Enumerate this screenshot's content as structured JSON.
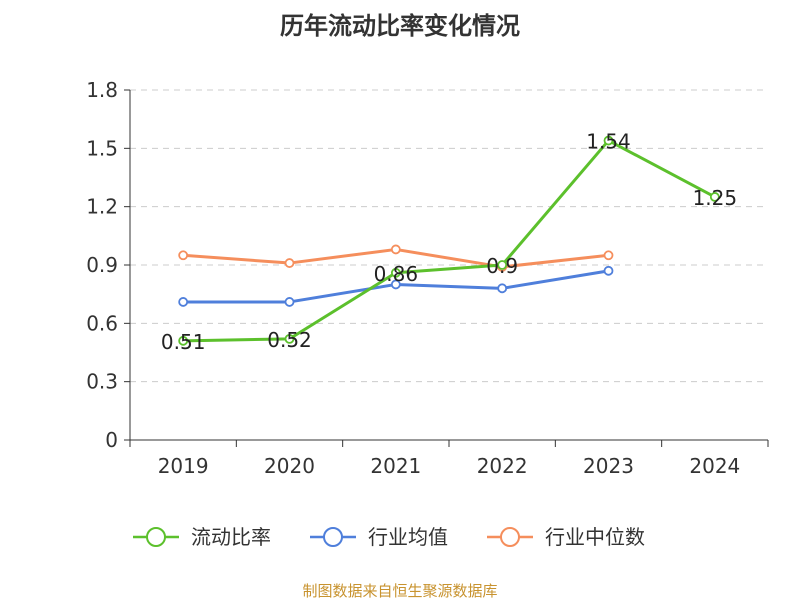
{
  "chart_data": {
    "type": "line",
    "title": "历年流动比率变化情况",
    "categories": [
      "2019",
      "2020",
      "2021",
      "2022",
      "2023",
      "2024"
    ],
    "ylim": [
      0,
      1.8
    ],
    "yticks": [
      "0",
      "0.3",
      "0.6",
      "0.9",
      "1.2",
      "1.5",
      "1.8"
    ],
    "grid": true,
    "legend_position": "bottom",
    "series": [
      {
        "name": "流动比率",
        "color": "#5cc02c",
        "values": [
          0.51,
          0.52,
          0.86,
          0.9,
          1.54,
          1.25
        ],
        "labels": [
          "0.51",
          "0.52",
          "0.86",
          "0.9",
          "1.54",
          "1.25"
        ]
      },
      {
        "name": "行业均值",
        "color": "#4f7fdb",
        "values": [
          0.71,
          0.71,
          0.8,
          0.78,
          0.87,
          null
        ]
      },
      {
        "name": "行业中位数",
        "color": "#f58e5c",
        "values": [
          0.95,
          0.91,
          0.98,
          0.89,
          0.95,
          null
        ]
      }
    ]
  },
  "footer": "制图数据来自恒生聚源数据库"
}
